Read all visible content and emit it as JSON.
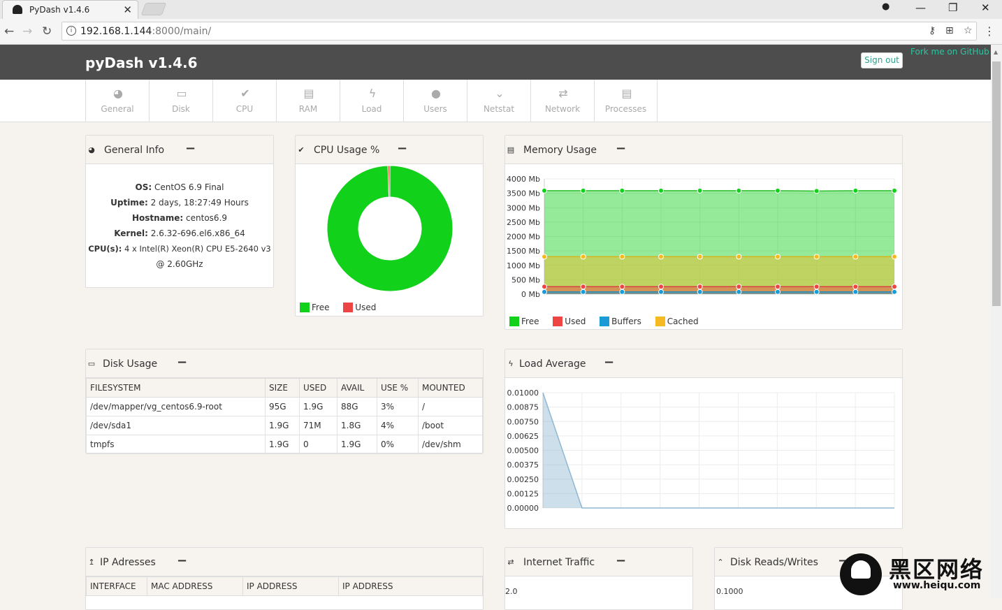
{
  "browser": {
    "tab_title": "PyDash v1.4.6",
    "tab_close": "✕",
    "url_host": "192.168.1.144",
    "url_path": ":8000/main/",
    "controls": {
      "account": "●",
      "minimize": "—",
      "restore": "❐",
      "close": "✕"
    }
  },
  "header": {
    "brand": "pyDash v1.4.6",
    "sign_out": "Sign out",
    "fork": "Fork me on GitHub"
  },
  "nav": [
    {
      "label": "General",
      "icon": "dashboard-icon",
      "glyph": "◕"
    },
    {
      "label": "Disk",
      "icon": "hdd-icon",
      "glyph": "▭"
    },
    {
      "label": "CPU",
      "icon": "check-icon",
      "glyph": "✔"
    },
    {
      "label": "RAM",
      "icon": "memory-icon",
      "glyph": "▤"
    },
    {
      "label": "Load",
      "icon": "bolt-icon",
      "glyph": "ϟ"
    },
    {
      "label": "Users",
      "icon": "user-icon",
      "glyph": "●"
    },
    {
      "label": "Netstat",
      "icon": "chevron-down-icon",
      "glyph": "⌄"
    },
    {
      "label": "Network",
      "icon": "exchange-icon",
      "glyph": "⇄"
    },
    {
      "label": "Processes",
      "icon": "list-icon",
      "glyph": "▤"
    }
  ],
  "general_info": {
    "title": "General Info",
    "os_label": "OS:",
    "os": "CentOS 6.9 Final",
    "uptime_label": "Uptime:",
    "uptime": "2 days, 18:27:49 Hours",
    "hostname_label": "Hostname:",
    "hostname": "centos6.9",
    "kernel_label": "Kernel:",
    "kernel": "2.6.32-696.el6.x86_64",
    "cpu_label": "CPU(s):",
    "cpu_line1": "4 x Intel(R) Xeon(R) CPU E5-2640 v3",
    "cpu_line2": "@ 2.60GHz"
  },
  "cpu_usage": {
    "title": "CPU Usage %",
    "legend": [
      "Free",
      "Used"
    ]
  },
  "memory_usage": {
    "title": "Memory Usage",
    "legend": [
      "Free",
      "Used",
      "Buffers",
      "Cached"
    ]
  },
  "disk_usage": {
    "title": "Disk Usage",
    "columns": [
      "FILESYSTEM",
      "SIZE",
      "USED",
      "AVAIL",
      "USE %",
      "MOUNTED"
    ],
    "rows": [
      [
        "/dev/mapper/vg_centos6.9-root",
        "95G",
        "1.9G",
        "88G",
        "3%",
        "/"
      ],
      [
        "/dev/sda1",
        "1.9G",
        "71M",
        "1.8G",
        "4%",
        "/boot"
      ],
      [
        "tmpfs",
        "1.9G",
        "0",
        "1.9G",
        "0%",
        "/dev/shm"
      ]
    ]
  },
  "load_average": {
    "title": "Load Average"
  },
  "ip_addresses": {
    "title": "IP Adresses",
    "columns": [
      "INTERFACE",
      "MAC ADDRESS",
      "IP ADDRESS",
      "IP ADDRESS"
    ]
  },
  "internet_traffic": {
    "title": "Internet Traffic",
    "first_tick": "2.0"
  },
  "disk_rw": {
    "title": "Disk Reads/Writes",
    "first_tick": "0.1000"
  },
  "watermark": {
    "cn": "黑区网络",
    "url": "www.heiqu.com"
  },
  "colors": {
    "free": "#11d11b",
    "used": "#ee4444",
    "buffers": "#1b9bd6",
    "cached": "#f5b922",
    "header": "#4d4d4d",
    "accent": "#2aa38c"
  },
  "chart_data": [
    {
      "type": "pie",
      "title": "CPU Usage %",
      "categories": [
        "Free",
        "Used"
      ],
      "values": [
        99.5,
        0.5
      ]
    },
    {
      "type": "area",
      "title": "Memory Usage",
      "ylabel": "",
      "ylim": [
        0,
        4000
      ],
      "yticks": [
        "4000 Mb",
        "3500 Mb",
        "3000 Mb",
        "2500 Mb",
        "2000 Mb",
        "1500 Mb",
        "1000 Mb",
        "500 Mb",
        "0 Mb"
      ],
      "x": [
        1,
        2,
        3,
        4,
        5,
        6,
        7,
        8,
        9,
        10
      ],
      "series": [
        {
          "name": "Free",
          "values": [
            3590,
            3590,
            3590,
            3590,
            3590,
            3590,
            3590,
            3580,
            3590,
            3590
          ]
        },
        {
          "name": "Used",
          "values": [
            260,
            260,
            260,
            260,
            260,
            260,
            260,
            260,
            260,
            260
          ]
        },
        {
          "name": "Buffers",
          "values": [
            80,
            80,
            80,
            80,
            80,
            80,
            80,
            80,
            80,
            80
          ]
        },
        {
          "name": "Cached",
          "values": [
            1300,
            1300,
            1300,
            1300,
            1300,
            1300,
            1300,
            1300,
            1300,
            1300
          ]
        }
      ],
      "grid": true,
      "legend": "bottom-left"
    },
    {
      "type": "area",
      "title": "Load Average",
      "ylim": [
        0,
        0.01
      ],
      "yticks": [
        "0.01000",
        "0.00875",
        "0.00750",
        "0.00625",
        "0.00500",
        "0.00375",
        "0.00250",
        "0.00125",
        "0.00000"
      ],
      "x": [
        1,
        2,
        3,
        4,
        5,
        6,
        7,
        8,
        9,
        10
      ],
      "series": [
        {
          "values": [
            0.01,
            0,
            0,
            0,
            0,
            0,
            0,
            0,
            0,
            0
          ]
        }
      ],
      "grid": true
    }
  ]
}
